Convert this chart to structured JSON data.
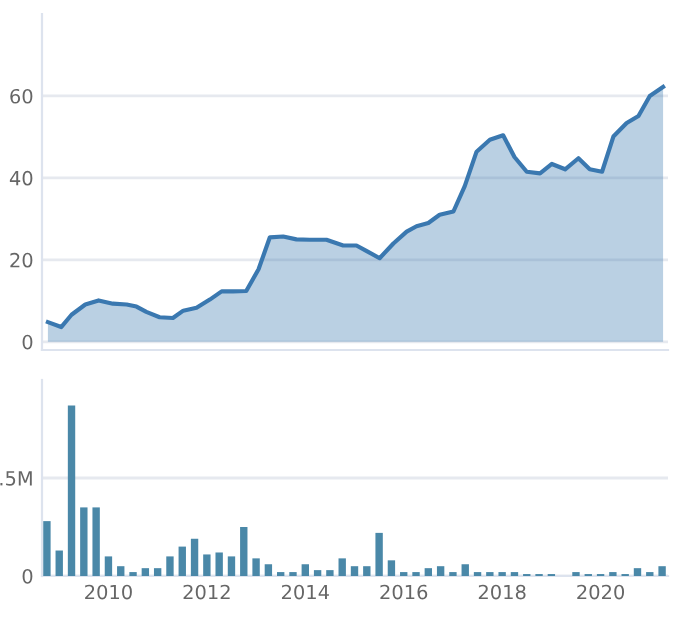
{
  "chart_data": [
    {
      "type": "area",
      "color": "#3a78b0",
      "xlim": [
        2008.65,
        2021.37
      ],
      "ylim": [
        -2,
        80
      ],
      "yticks": [
        0,
        20,
        40,
        60
      ],
      "grid": "y",
      "tick_labels": "y",
      "x": [
        2008.77,
        2009.04,
        2009.25,
        2009.53,
        2009.8,
        2010.09,
        2010.37,
        2010.57,
        2010.77,
        2011.04,
        2011.31,
        2011.52,
        2011.79,
        2012.06,
        2012.3,
        2012.53,
        2012.8,
        2013.05,
        2013.28,
        2013.55,
        2013.82,
        2014.09,
        2014.43,
        2014.77,
        2015.04,
        2015.24,
        2015.51,
        2015.79,
        2016.06,
        2016.26,
        2016.5,
        2016.73,
        2017.01,
        2017.24,
        2017.48,
        2017.75,
        2018.02,
        2018.25,
        2018.5,
        2018.77,
        2019.01,
        2019.28,
        2019.55,
        2019.78,
        2020.03,
        2020.26,
        2020.53,
        2020.77,
        2021.0,
        2021.27
      ],
      "values": [
        4.8,
        3.6,
        6.6,
        9.1,
        10.1,
        9.3,
        9.1,
        8.6,
        7.3,
        6.0,
        5.8,
        7.6,
        8.3,
        10.3,
        12.3,
        12.3,
        12.4,
        17.7,
        25.5,
        25.7,
        25.0,
        24.9,
        24.9,
        23.5,
        23.5,
        22.2,
        20.4,
        24.0,
        26.9,
        28.2,
        29.0,
        31.0,
        31.8,
        38.0,
        46.4,
        49.3,
        50.4,
        45.1,
        41.5,
        41.1,
        43.4,
        42.1,
        44.8,
        42.1,
        41.5,
        50.1,
        53.4,
        55.1,
        60.0,
        62.2
      ]
    },
    {
      "type": "bar",
      "color": "#4a88a8",
      "xlim": [
        2008.65,
        2021.37
      ],
      "xticks": [
        2010,
        2012,
        2014,
        2016,
        2018,
        2020
      ],
      "ylim": [
        0,
        1000000
      ],
      "yticks": [
        0,
        {
          "value": 500000,
          "label": ".5M"
        }
      ],
      "grid": "y",
      "x": [
        2008.75,
        2009.0,
        2009.25,
        2009.5,
        2009.75,
        2010.0,
        2010.25,
        2010.5,
        2010.75,
        2011.0,
        2011.25,
        2011.5,
        2011.75,
        2012.0,
        2012.25,
        2012.5,
        2012.75,
        2013.0,
        2013.25,
        2013.5,
        2013.75,
        2014.0,
        2014.25,
        2014.5,
        2014.75,
        2015.0,
        2015.25,
        2015.5,
        2015.75,
        2016.0,
        2016.25,
        2016.5,
        2016.75,
        2017.0,
        2017.25,
        2017.5,
        2017.75,
        2018.0,
        2018.25,
        2018.5,
        2018.75,
        2019.0,
        2019.25,
        2019.5,
        2019.75,
        2020.0,
        2020.25,
        2020.5,
        2020.75,
        2021.0,
        2021.25
      ],
      "values": [
        280000,
        130000,
        870000,
        350000,
        350000,
        100000,
        50000,
        20000,
        40000,
        40000,
        100000,
        150000,
        190000,
        110000,
        120000,
        100000,
        250000,
        90000,
        60000,
        20000,
        20000,
        60000,
        30000,
        30000,
        90000,
        50000,
        50000,
        220000,
        80000,
        20000,
        20000,
        40000,
        50000,
        20000,
        60000,
        20000,
        20000,
        20000,
        20000,
        10000,
        10000,
        10000,
        0,
        20000,
        10000,
        10000,
        20000,
        10000,
        40000,
        20000,
        50000
      ]
    }
  ]
}
